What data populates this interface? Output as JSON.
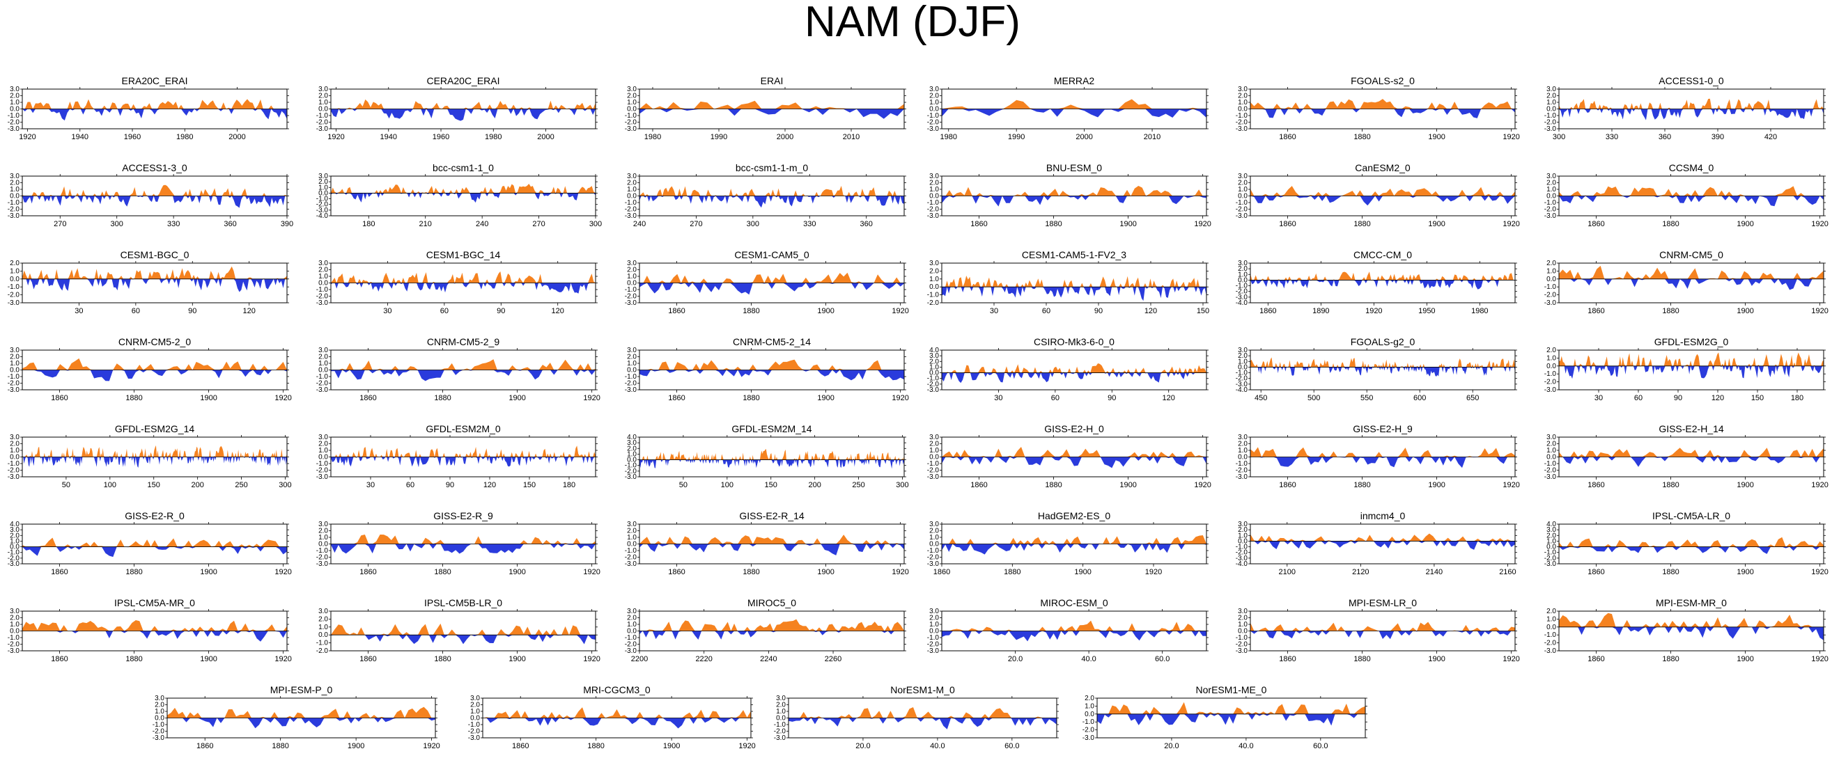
{
  "title": "NAM (DJF)",
  "colors": {
    "positive": "#f5821f",
    "negative": "#2a3bdc",
    "axis": "#000000",
    "zero_line": "#000000"
  },
  "chart_data": [
    {
      "type": "area",
      "name": "ERA20C_ERAI",
      "x_range": [
        1918,
        2019
      ],
      "y_range": [
        -3,
        3
      ],
      "y_ticks": [
        "3.0",
        "2.0",
        "1.0",
        "0.0",
        "-1.0",
        "-2.0",
        "-3.0"
      ],
      "x_ticks": [
        1920,
        1940,
        1960,
        1980,
        2000
      ],
      "seed": 1
    },
    {
      "type": "area",
      "name": "CERA20C_ERAI",
      "x_range": [
        1918,
        2019
      ],
      "y_range": [
        -3,
        3
      ],
      "y_ticks": [
        "3.0",
        "2.0",
        "1.0",
        "0.0",
        "-1.0",
        "-2.0",
        "-3.0"
      ],
      "x_ticks": [
        1920,
        1940,
        1960,
        1980,
        2000
      ],
      "seed": 2
    },
    {
      "type": "area",
      "name": "ERAI",
      "x_range": [
        1978,
        2018
      ],
      "y_range": [
        -3,
        3
      ],
      "y_ticks": [
        "3.0",
        "2.0",
        "1.0",
        "0.0",
        "-1.0",
        "-2.0",
        "-3.0"
      ],
      "x_ticks": [
        1980,
        1990,
        2000,
        2010
      ],
      "seed": 3
    },
    {
      "type": "area",
      "name": "MERRA2",
      "x_range": [
        1979,
        2018
      ],
      "y_range": [
        -3,
        3
      ],
      "y_ticks": [
        "3.0",
        "2.0",
        "1.0",
        "0.0",
        "-1.0",
        "-2.0",
        "-3.0"
      ],
      "x_ticks": [
        1980,
        1990,
        2000,
        2010
      ],
      "seed": 4
    },
    {
      "type": "area",
      "name": "FGOALS-s2_0",
      "x_range": [
        1850,
        1921
      ],
      "y_range": [
        -3,
        3
      ],
      "y_ticks": [
        "3.0",
        "2.0",
        "1.0",
        "0.0",
        "-1.0",
        "-2.0",
        "-3.0"
      ],
      "x_ticks": [
        1860,
        1880,
        1900,
        1920
      ],
      "seed": 5
    },
    {
      "type": "area",
      "name": "ACCESS1-0_0",
      "x_range": [
        300,
        450
      ],
      "y_range": [
        -3,
        3
      ],
      "y_ticks": [
        "3.0",
        "2.0",
        "1.0",
        "0.0",
        "-1.0",
        "-2.0",
        "-3.0"
      ],
      "x_ticks": [
        300,
        330,
        360,
        390,
        420
      ],
      "seed": 6
    },
    {
      "type": "area",
      "name": "ACCESS1-3_0",
      "x_range": [
        250,
        390
      ],
      "y_range": [
        -3,
        3
      ],
      "y_ticks": [
        "3.0",
        "2.0",
        "1.0",
        "0.0",
        "-1.0",
        "-2.0",
        "-3.0"
      ],
      "x_ticks": [
        270,
        300,
        330,
        360,
        390
      ],
      "seed": 7
    },
    {
      "type": "area",
      "name": "bcc-csm1-1_0",
      "x_range": [
        160,
        300
      ],
      "y_range": [
        -4,
        3
      ],
      "y_ticks": [
        "3.0",
        "2.0",
        "1.0",
        "0.0",
        "-1.0",
        "-2.0",
        "-3.0",
        "-4.0"
      ],
      "x_ticks": [
        180,
        210,
        240,
        270,
        300
      ],
      "seed": 8
    },
    {
      "type": "area",
      "name": "bcc-csm1-1-m_0",
      "x_range": [
        240,
        380
      ],
      "y_range": [
        -3,
        3
      ],
      "y_ticks": [
        "3.0",
        "2.0",
        "1.0",
        "0.0",
        "-1.0",
        "-2.0",
        "-3.0"
      ],
      "x_ticks": [
        240,
        270,
        300,
        330,
        360
      ],
      "seed": 9
    },
    {
      "type": "area",
      "name": "BNU-ESM_0",
      "x_range": [
        1850,
        1921
      ],
      "y_range": [
        -3,
        3
      ],
      "y_ticks": [
        "3.0",
        "2.0",
        "1.0",
        "0.0",
        "-1.0",
        "-2.0",
        "-3.0"
      ],
      "x_ticks": [
        1860,
        1880,
        1900,
        1920
      ],
      "seed": 10
    },
    {
      "type": "area",
      "name": "CanESM2_0",
      "x_range": [
        1850,
        1921
      ],
      "y_range": [
        -3,
        3
      ],
      "y_ticks": [
        "3.0",
        "2.0",
        "1.0",
        "0.0",
        "-1.0",
        "-2.0",
        "-3.0"
      ],
      "x_ticks": [
        1860,
        1880,
        1900,
        1920
      ],
      "seed": 11
    },
    {
      "type": "area",
      "name": "CCSM4_0",
      "x_range": [
        1850,
        1921
      ],
      "y_range": [
        -3,
        3
      ],
      "y_ticks": [
        "3.0",
        "2.0",
        "1.0",
        "0.0",
        "-1.0",
        "-2.0",
        "-3.0"
      ],
      "x_ticks": [
        1860,
        1880,
        1900,
        1920
      ],
      "seed": 12
    },
    {
      "type": "area",
      "name": "CESM1-BGC_0",
      "x_range": [
        0,
        140
      ],
      "y_range": [
        -3,
        2
      ],
      "y_ticks": [
        "2.0",
        "1.0",
        "0.0",
        "-1.0",
        "-2.0",
        "-3.0"
      ],
      "x_ticks": [
        30,
        60,
        90,
        120
      ],
      "seed": 13
    },
    {
      "type": "area",
      "name": "CESM1-BGC_14",
      "x_range": [
        0,
        140
      ],
      "y_range": [
        -3,
        3
      ],
      "y_ticks": [
        "3.0",
        "2.0",
        "1.0",
        "0.0",
        "-1.0",
        "-2.0",
        "-3.0"
      ],
      "x_ticks": [
        30,
        60,
        90,
        120
      ],
      "seed": 14
    },
    {
      "type": "area",
      "name": "CESM1-CAM5_0",
      "x_range": [
        1850,
        1921
      ],
      "y_range": [
        -3,
        3
      ],
      "y_ticks": [
        "3.0",
        "2.0",
        "1.0",
        "0.0",
        "-1.0",
        "-2.0",
        "-3.0"
      ],
      "x_ticks": [
        1860,
        1880,
        1900,
        1920
      ],
      "seed": 15
    },
    {
      "type": "area",
      "name": "CESM1-CAM5-1-FV2_3",
      "x_range": [
        0,
        152
      ],
      "y_range": [
        -2,
        3
      ],
      "y_ticks": [
        "3.0",
        "2.0",
        "1.0",
        "0.0",
        "-1.0",
        "-2.0"
      ],
      "x_ticks": [
        30,
        60,
        90,
        120,
        150
      ],
      "seed": 16
    },
    {
      "type": "area",
      "name": "CMCC-CM_0",
      "x_range": [
        1850,
        2000
      ],
      "y_range": [
        -4,
        3
      ],
      "y_ticks": [
        "3.0",
        "2.0",
        "1.0",
        "0.0",
        "-1.0",
        "-2.0",
        "-3.0",
        "-4.0"
      ],
      "x_ticks": [
        1860,
        1890,
        1920,
        1950,
        1980
      ],
      "seed": 17
    },
    {
      "type": "area",
      "name": "CNRM-CM5_0",
      "x_range": [
        1850,
        1921
      ],
      "y_range": [
        -3,
        2
      ],
      "y_ticks": [
        "2.0",
        "1.0",
        "0.0",
        "-1.0",
        "-2.0",
        "-3.0"
      ],
      "x_ticks": [
        1860,
        1880,
        1900,
        1920
      ],
      "seed": 18
    },
    {
      "type": "area",
      "name": "CNRM-CM5-2_0",
      "x_range": [
        1850,
        1921
      ],
      "y_range": [
        -3,
        3
      ],
      "y_ticks": [
        "3.0",
        "2.0",
        "1.0",
        "0.0",
        "-1.0",
        "-2.0",
        "-3.0"
      ],
      "x_ticks": [
        1860,
        1880,
        1900,
        1920
      ],
      "seed": 19
    },
    {
      "type": "area",
      "name": "CNRM-CM5-2_9",
      "x_range": [
        1850,
        1921
      ],
      "y_range": [
        -3,
        3
      ],
      "y_ticks": [
        "3.0",
        "2.0",
        "1.0",
        "0.0",
        "-1.0",
        "-2.0",
        "-3.0"
      ],
      "x_ticks": [
        1860,
        1880,
        1900,
        1920
      ],
      "seed": 20
    },
    {
      "type": "area",
      "name": "CNRM-CM5-2_14",
      "x_range": [
        1850,
        1921
      ],
      "y_range": [
        -3,
        3
      ],
      "y_ticks": [
        "3.0",
        "2.0",
        "1.0",
        "0.0",
        "-1.0",
        "-2.0",
        "-3.0"
      ],
      "x_ticks": [
        1860,
        1880,
        1900,
        1920
      ],
      "seed": 21
    },
    {
      "type": "area",
      "name": "CSIRO-Mk3-6-0_0",
      "x_range": [
        0,
        140
      ],
      "y_range": [
        -3,
        4
      ],
      "y_ticks": [
        "4.0",
        "3.0",
        "2.0",
        "1.0",
        "0.0",
        "-1.0",
        "-2.0",
        "-3.0"
      ],
      "x_ticks": [
        30,
        60,
        90,
        120
      ],
      "seed": 22
    },
    {
      "type": "area",
      "name": "FGOALS-g2_0",
      "x_range": [
        440,
        690
      ],
      "y_range": [
        -4,
        3
      ],
      "y_ticks": [
        "3.0",
        "2.0",
        "1.0",
        "0.0",
        "-1.0",
        "-2.0",
        "-3.0",
        "-4.0"
      ],
      "x_ticks": [
        450,
        500,
        550,
        600,
        650
      ],
      "seed": 23
    },
    {
      "type": "area",
      "name": "GFDL-ESM2G_0",
      "x_range": [
        0,
        200
      ],
      "y_range": [
        -3,
        2
      ],
      "y_ticks": [
        "2.0",
        "1.0",
        "0.0",
        "-1.0",
        "-2.0",
        "-3.0"
      ],
      "x_ticks": [
        30,
        60,
        90,
        120,
        150,
        180
      ],
      "seed": 24
    },
    {
      "type": "area",
      "name": "GFDL-ESM2G_14",
      "x_range": [
        0,
        302
      ],
      "y_range": [
        -3,
        3
      ],
      "y_ticks": [
        "3.0",
        "2.0",
        "1.0",
        "0.0",
        "-1.0",
        "-2.0",
        "-3.0"
      ],
      "x_ticks": [
        50,
        100,
        150,
        200,
        250,
        300
      ],
      "seed": 25
    },
    {
      "type": "area",
      "name": "GFDL-ESM2M_0",
      "x_range": [
        0,
        200
      ],
      "y_range": [
        -3,
        3
      ],
      "y_ticks": [
        "3.0",
        "2.0",
        "1.0",
        "0.0",
        "-1.0",
        "-2.0",
        "-3.0"
      ],
      "x_ticks": [
        30,
        60,
        90,
        120,
        150,
        180
      ],
      "seed": 26
    },
    {
      "type": "area",
      "name": "GFDL-ESM2M_14",
      "x_range": [
        0,
        302
      ],
      "y_range": [
        -3,
        4
      ],
      "y_ticks": [
        "4.0",
        "3.0",
        "2.0",
        "1.0",
        "0.0",
        "-1.0",
        "-2.0",
        "-3.0"
      ],
      "x_ticks": [
        50,
        100,
        150,
        200,
        250,
        300
      ],
      "seed": 27
    },
    {
      "type": "area",
      "name": "GISS-E2-H_0",
      "x_range": [
        1850,
        1921
      ],
      "y_range": [
        -3,
        3
      ],
      "y_ticks": [
        "3.0",
        "2.0",
        "1.0",
        "0.0",
        "-1.0",
        "-2.0",
        "-3.0"
      ],
      "x_ticks": [
        1860,
        1880,
        1900,
        1920
      ],
      "seed": 28
    },
    {
      "type": "area",
      "name": "GISS-E2-H_9",
      "x_range": [
        1850,
        1921
      ],
      "y_range": [
        -3,
        3
      ],
      "y_ticks": [
        "3.0",
        "2.0",
        "1.0",
        "0.0",
        "-1.0",
        "-2.0",
        "-3.0"
      ],
      "x_ticks": [
        1860,
        1880,
        1900,
        1920
      ],
      "seed": 29
    },
    {
      "type": "area",
      "name": "GISS-E2-H_14",
      "x_range": [
        1850,
        1921
      ],
      "y_range": [
        -3,
        3
      ],
      "y_ticks": [
        "3.0",
        "2.0",
        "1.0",
        "0.0",
        "-1.0",
        "-2.0",
        "-3.0"
      ],
      "x_ticks": [
        1860,
        1880,
        1900,
        1920
      ],
      "seed": 30
    },
    {
      "type": "area",
      "name": "GISS-E2-R_0",
      "x_range": [
        1850,
        1921
      ],
      "y_range": [
        -3,
        4
      ],
      "y_ticks": [
        "4.0",
        "3.0",
        "2.0",
        "1.0",
        "0.0",
        "-1.0",
        "-2.0",
        "-3.0"
      ],
      "x_ticks": [
        1860,
        1880,
        1900,
        1920
      ],
      "seed": 31
    },
    {
      "type": "area",
      "name": "GISS-E2-R_9",
      "x_range": [
        1850,
        1921
      ],
      "y_range": [
        -3,
        3
      ],
      "y_ticks": [
        "3.0",
        "2.0",
        "1.0",
        "0.0",
        "-1.0",
        "-2.0",
        "-3.0"
      ],
      "x_ticks": [
        1860,
        1880,
        1900,
        1920
      ],
      "seed": 32
    },
    {
      "type": "area",
      "name": "GISS-E2-R_14",
      "x_range": [
        1850,
        1921
      ],
      "y_range": [
        -3,
        3
      ],
      "y_ticks": [
        "3.0",
        "2.0",
        "1.0",
        "0.0",
        "-1.0",
        "-2.0",
        "-3.0"
      ],
      "x_ticks": [
        1860,
        1880,
        1900,
        1920
      ],
      "seed": 33
    },
    {
      "type": "area",
      "name": "HadGEM2-ES_0",
      "x_range": [
        1860,
        1935
      ],
      "y_range": [
        -3,
        3
      ],
      "y_ticks": [
        "3.0",
        "2.0",
        "1.0",
        "0.0",
        "-1.0",
        "-2.0",
        "-3.0"
      ],
      "x_ticks": [
        1860,
        1880,
        1900,
        1920
      ],
      "seed": 34
    },
    {
      "type": "area",
      "name": "inmcm4_0",
      "x_range": [
        2090,
        2162
      ],
      "y_range": [
        -4,
        3
      ],
      "y_ticks": [
        "3.0",
        "2.0",
        "1.0",
        "0.0",
        "-1.0",
        "-2.0",
        "-3.0",
        "-4.0"
      ],
      "x_ticks": [
        2100,
        2120,
        2140,
        2160
      ],
      "seed": 35
    },
    {
      "type": "area",
      "name": "IPSL-CM5A-LR_0",
      "x_range": [
        1850,
        1921
      ],
      "y_range": [
        -3,
        4
      ],
      "y_ticks": [
        "4.0",
        "3.0",
        "2.0",
        "1.0",
        "0.0",
        "-1.0",
        "-2.0",
        "-3.0"
      ],
      "x_ticks": [
        1860,
        1880,
        1900,
        1920
      ],
      "seed": 36
    },
    {
      "type": "area",
      "name": "IPSL-CM5A-MR_0",
      "x_range": [
        1850,
        1921
      ],
      "y_range": [
        -3,
        3
      ],
      "y_ticks": [
        "3.0",
        "2.0",
        "1.0",
        "0.0",
        "-1.0",
        "-2.0",
        "-3.0"
      ],
      "x_ticks": [
        1860,
        1880,
        1900,
        1920
      ],
      "seed": 37
    },
    {
      "type": "area",
      "name": "IPSL-CM5B-LR_0",
      "x_range": [
        1850,
        1921
      ],
      "y_range": [
        -2,
        3
      ],
      "y_ticks": [
        "3.0",
        "2.0",
        "1.0",
        "0.0",
        "-1.0",
        "-2.0"
      ],
      "x_ticks": [
        1860,
        1880,
        1900,
        1920
      ],
      "seed": 38
    },
    {
      "type": "area",
      "name": "MIROC5_0",
      "x_range": [
        2200,
        2282
      ],
      "y_range": [
        -3,
        3
      ],
      "y_ticks": [
        "3.0",
        "2.0",
        "1.0",
        "0.0",
        "-1.0",
        "-2.0",
        "-3.0"
      ],
      "x_ticks": [
        2200,
        2220,
        2240,
        2260
      ],
      "seed": 39
    },
    {
      "type": "area",
      "name": "MIROC-ESM_0",
      "x_range": [
        0,
        72
      ],
      "y_range": [
        -3,
        3
      ],
      "y_ticks": [
        "3.0",
        "2.0",
        "1.0",
        "0.0",
        "-1.0",
        "-2.0",
        "-3.0"
      ],
      "x_ticks": [
        "20.0",
        "40.0",
        "60.0"
      ],
      "seed": 40
    },
    {
      "type": "area",
      "name": "MPI-ESM-LR_0",
      "x_range": [
        1850,
        1921
      ],
      "y_range": [
        -3,
        3
      ],
      "y_ticks": [
        "3.0",
        "2.0",
        "1.0",
        "0.0",
        "-1.0",
        "-2.0",
        "-3.0"
      ],
      "x_ticks": [
        1860,
        1880,
        1900,
        1920
      ],
      "seed": 41
    },
    {
      "type": "area",
      "name": "MPI-ESM-MR_0",
      "x_range": [
        1850,
        1921
      ],
      "y_range": [
        -3,
        2
      ],
      "y_ticks": [
        "2.0",
        "1.0",
        "0.0",
        "-1.0",
        "-2.0",
        "-3.0"
      ],
      "x_ticks": [
        1860,
        1880,
        1900,
        1920
      ],
      "seed": 42
    },
    {
      "type": "area",
      "name": "MPI-ESM-P_0",
      "x_range": [
        1850,
        1921
      ],
      "y_range": [
        -3,
        3
      ],
      "y_ticks": [
        "3.0",
        "2.0",
        "1.0",
        "0.0",
        "-1.0",
        "-2.0",
        "-3.0"
      ],
      "x_ticks": [
        1860,
        1880,
        1900,
        1920
      ],
      "seed": 43
    },
    {
      "type": "area",
      "name": "MRI-CGCM3_0",
      "x_range": [
        1850,
        1921
      ],
      "y_range": [
        -3,
        3
      ],
      "y_ticks": [
        "3.0",
        "2.0",
        "1.0",
        "0.0",
        "-1.0",
        "-2.0",
        "-3.0"
      ],
      "x_ticks": [
        1860,
        1880,
        1900,
        1920
      ],
      "seed": 44
    },
    {
      "type": "area",
      "name": "NorESM1-M_0",
      "x_range": [
        0,
        72
      ],
      "y_range": [
        -3,
        3
      ],
      "y_ticks": [
        "3.0",
        "2.0",
        "1.0",
        "0.0",
        "-1.0",
        "-2.0",
        "-3.0"
      ],
      "x_ticks": [
        "20.0",
        "40.0",
        "60.0"
      ],
      "seed": 45
    },
    {
      "type": "area",
      "name": "NorESM1-ME_0",
      "x_range": [
        0,
        72
      ],
      "y_range": [
        -3,
        2
      ],
      "y_ticks": [
        "2.0",
        "1.0",
        "0.0",
        "-1.0",
        "-2.0",
        "-3.0"
      ],
      "x_ticks": [
        "20.0",
        "40.0",
        "60.0"
      ],
      "seed": 46
    }
  ]
}
